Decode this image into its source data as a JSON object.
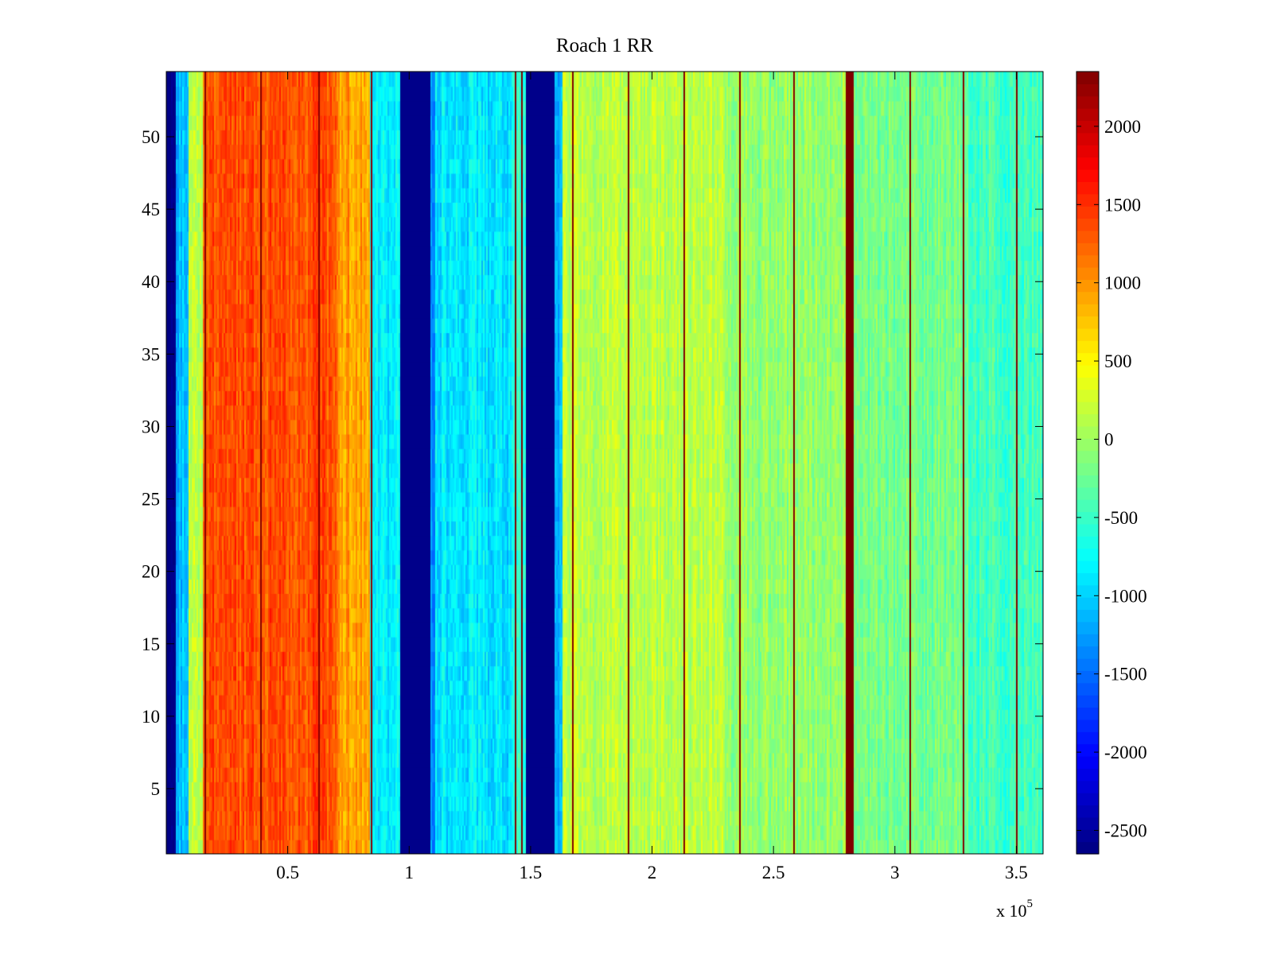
{
  "chart_data": {
    "type": "heatmap",
    "title": "Roach 1 RR",
    "x_exponent_label": "x 10",
    "x_exponent_power": "5",
    "xlim": [
      0,
      361000
    ],
    "ylim": [
      0.5,
      54.5
    ],
    "x_ticks": [
      {
        "value": 50000,
        "label": "0.5"
      },
      {
        "value": 100000,
        "label": "1"
      },
      {
        "value": 150000,
        "label": "1.5"
      },
      {
        "value": 200000,
        "label": "2"
      },
      {
        "value": 250000,
        "label": "2.5"
      },
      {
        "value": 300000,
        "label": "3"
      },
      {
        "value": 350000,
        "label": "3.5"
      }
    ],
    "y_ticks": [
      {
        "value": 5,
        "label": "5"
      },
      {
        "value": 10,
        "label": "10"
      },
      {
        "value": 15,
        "label": "15"
      },
      {
        "value": 20,
        "label": "20"
      },
      {
        "value": 25,
        "label": "25"
      },
      {
        "value": 30,
        "label": "30"
      },
      {
        "value": 35,
        "label": "35"
      },
      {
        "value": 40,
        "label": "40"
      },
      {
        "value": 45,
        "label": "45"
      },
      {
        "value": 50,
        "label": "50"
      }
    ],
    "rows": 54,
    "colormap": "jet",
    "clim": [
      -2650,
      2350
    ],
    "colorbar_ticks": [
      {
        "value": 2000,
        "label": "2000"
      },
      {
        "value": 1500,
        "label": "1500"
      },
      {
        "value": 1000,
        "label": "1000"
      },
      {
        "value": 500,
        "label": "500"
      },
      {
        "value": 0,
        "label": "0"
      },
      {
        "value": -500,
        "label": "-500"
      },
      {
        "value": -1000,
        "label": "-1000"
      },
      {
        "value": -1500,
        "label": "-1500"
      },
      {
        "value": -2000,
        "label": "-2000"
      },
      {
        "value": -2500,
        "label": "-2500"
      }
    ],
    "column_profile": [
      {
        "x0": 0,
        "x1": 4000,
        "value": -2600,
        "noise": 100
      },
      {
        "x0": 4000,
        "x1": 9000,
        "value": -1100,
        "noise": 350
      },
      {
        "x0": 9000,
        "x1": 15000,
        "value": 200,
        "noise": 400
      },
      {
        "x0": 15000,
        "x1": 70000,
        "value": 1350,
        "noise": 350
      },
      {
        "x0": 70000,
        "x1": 84000,
        "value": 950,
        "noise": 350
      },
      {
        "x0": 84000,
        "x1": 96000,
        "value": -850,
        "noise": 350
      },
      {
        "x0": 96000,
        "x1": 109000,
        "value": -2600,
        "noise": 0
      },
      {
        "x0": 109000,
        "x1": 111000,
        "value": -1300,
        "noise": 300
      },
      {
        "x0": 111000,
        "x1": 143000,
        "value": -900,
        "noise": 380
      },
      {
        "x0": 143000,
        "x1": 148000,
        "value": -500,
        "noise": 300
      },
      {
        "x0": 148000,
        "x1": 160000,
        "value": -2600,
        "noise": 0
      },
      {
        "x0": 160000,
        "x1": 163000,
        "value": -1200,
        "noise": 300
      },
      {
        "x0": 163000,
        "x1": 230000,
        "value": 150,
        "noise": 330
      },
      {
        "x0": 230000,
        "x1": 280000,
        "value": -50,
        "noise": 330
      },
      {
        "x0": 280000,
        "x1": 283000,
        "value": 2350,
        "noise": 0
      },
      {
        "x0": 283000,
        "x1": 330000,
        "value": -200,
        "noise": 330
      },
      {
        "x0": 330000,
        "x1": 361000,
        "value": -450,
        "noise": 330
      }
    ],
    "sharp_lines": [
      {
        "x": 15800,
        "value": 2300
      },
      {
        "x": 38800,
        "value": 2300
      },
      {
        "x": 62500,
        "value": 2300
      },
      {
        "x": 84200,
        "value": 2300
      },
      {
        "x": 143600,
        "value": 2350
      },
      {
        "x": 146000,
        "value": 2350
      },
      {
        "x": 167000,
        "value": 2350
      },
      {
        "x": 190000,
        "value": 2350
      },
      {
        "x": 213000,
        "value": 2350
      },
      {
        "x": 236000,
        "value": 2350
      },
      {
        "x": 258000,
        "value": 2350
      },
      {
        "x": 306000,
        "value": 2350
      },
      {
        "x": 328000,
        "value": 2350
      },
      {
        "x": 350000,
        "value": 2350
      }
    ]
  }
}
